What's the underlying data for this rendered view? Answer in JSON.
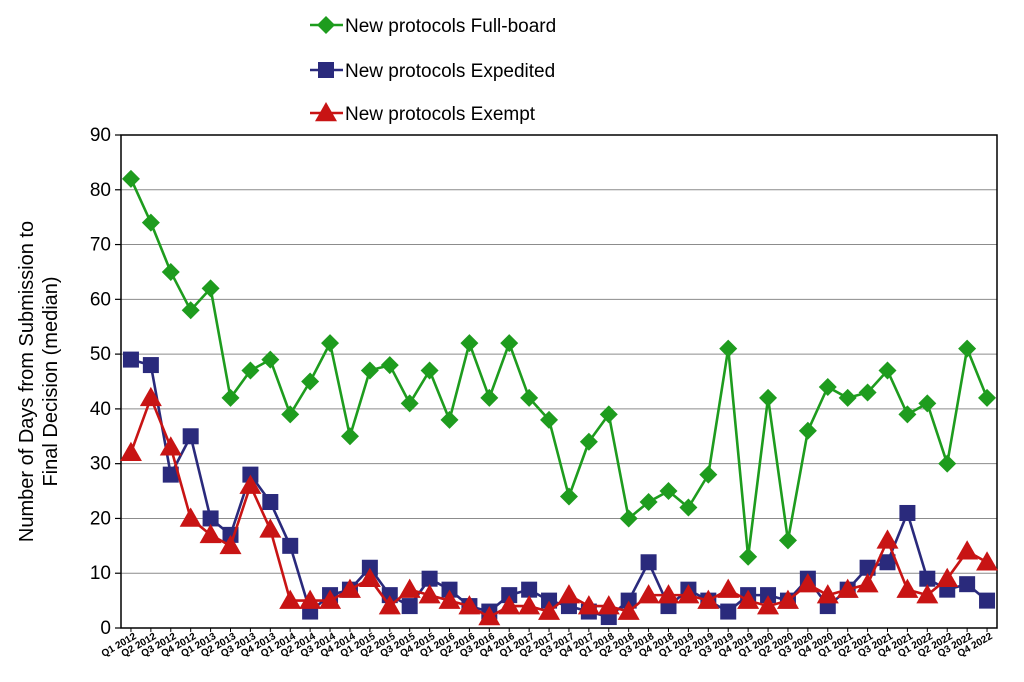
{
  "chart_data": {
    "type": "line",
    "title": "",
    "xlabel": "",
    "ylabel_lines": [
      "Number of Days from Submission to",
      "Final Decision (median)"
    ],
    "ylim": [
      0,
      90
    ],
    "yticks": [
      0,
      10,
      20,
      30,
      40,
      50,
      60,
      70,
      80,
      90
    ],
    "grid": "horizontal",
    "legend_position": "top-left, above plot",
    "categories": [
      "Q1 2012",
      "Q2 2012",
      "Q3 2012",
      "Q4 2012",
      "Q1 2013",
      "Q2 2013",
      "Q3 2013",
      "Q4 2013",
      "Q1 2014",
      "Q2 2014",
      "Q3 2014",
      "Q4 2014",
      "Q1 2015",
      "Q2 2015",
      "Q3 2015",
      "Q4 2015",
      "Q1 2016",
      "Q2 2016",
      "Q3 2016",
      "Q4 2016",
      "Q1 2017",
      "Q2 2017",
      "Q3 2017",
      "Q4 2017",
      "Q1 2018",
      "Q2 2018",
      "Q3 2018",
      "Q4 2018",
      "Q1 2019",
      "Q2 2019",
      "Q3 2019",
      "Q4 2019",
      "Q1 2020",
      "Q2 2020",
      "Q3 2020",
      "Q4 2020",
      "Q1 2021",
      "Q2 2021",
      "Q3 2021",
      "Q4 2021",
      "Q1 2022",
      "Q2 2022",
      "Q3 2022",
      "Q4 2022"
    ],
    "series": [
      {
        "name": "New protocols Full-board",
        "color": "#1e9c1e",
        "marker": "diamond",
        "values": [
          82,
          74,
          65,
          58,
          62,
          42,
          47,
          49,
          39,
          45,
          52,
          35,
          47,
          48,
          41,
          47,
          38,
          52,
          42,
          52,
          42,
          38,
          24,
          34,
          39,
          20,
          23,
          25,
          22,
          28,
          51,
          13,
          42,
          16,
          36,
          44,
          42,
          43,
          47,
          39,
          41,
          30,
          51,
          42
        ]
      },
      {
        "name": "New protocols Expedited",
        "color": "#2a2a7c",
        "marker": "square",
        "values": [
          49,
          48,
          28,
          35,
          20,
          17,
          28,
          23,
          15,
          3,
          6,
          7,
          11,
          6,
          4,
          9,
          7,
          4,
          3,
          6,
          7,
          5,
          4,
          3,
          2,
          5,
          12,
          4,
          7,
          5,
          3,
          6,
          6,
          5,
          9,
          4,
          7,
          11,
          12,
          21,
          9,
          7,
          8,
          5
        ]
      },
      {
        "name": "New protocols Exempt",
        "color": "#c81414",
        "marker": "triangle",
        "values": [
          32,
          42,
          33,
          20,
          17,
          15,
          26,
          18,
          5,
          5,
          5,
          7,
          9,
          4,
          7,
          6,
          5,
          4,
          2,
          4,
          4,
          3,
          6,
          4,
          4,
          3,
          6,
          6,
          6,
          5,
          7,
          5,
          4,
          5,
          8,
          6,
          7,
          8,
          16,
          7,
          6,
          9,
          14,
          12
        ]
      }
    ]
  }
}
